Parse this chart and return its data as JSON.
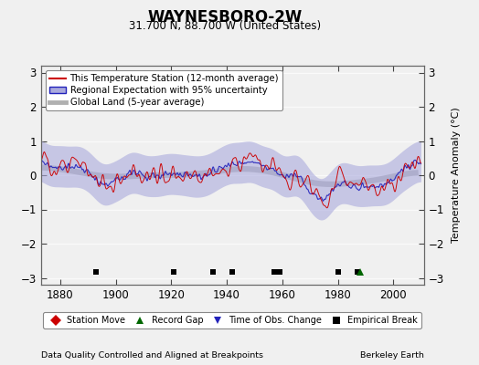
{
  "title": "WAYNESBORO-2W",
  "subtitle": "31.700 N, 88.700 W (United States)",
  "ylabel": "Temperature Anomaly (°C)",
  "xlabel_footer": "Data Quality Controlled and Aligned at Breakpoints",
  "xlabel_footer_right": "Berkeley Earth",
  "xlim": [
    1873,
    2011
  ],
  "ylim": [
    -3.2,
    3.2
  ],
  "yticks": [
    -3,
    -2,
    -1,
    0,
    1,
    2,
    3
  ],
  "xticks": [
    1880,
    1900,
    1920,
    1940,
    1960,
    1980,
    2000
  ],
  "bg_color": "#f0f0f0",
  "plot_bg_color": "#f0f0f0",
  "station_color": "#cc0000",
  "regional_color": "#2222bb",
  "regional_fill_color": "#aaaadd",
  "global_color": "#b0b0b0",
  "seed": 12345,
  "start_year": 1871,
  "end_year": 2009,
  "empirical_breaks": [
    1893,
    1921,
    1935,
    1942,
    1957,
    1959,
    1980,
    1987
  ],
  "record_gaps": [
    1988
  ],
  "station_moves": [],
  "obs_changes": [],
  "legend_main": [
    "This Temperature Station (12-month average)",
    "Regional Expectation with 95% uncertainty",
    "Global Land (5-year average)"
  ],
  "legend_markers": [
    "Station Move",
    "Record Gap",
    "Time of Obs. Change",
    "Empirical Break"
  ]
}
